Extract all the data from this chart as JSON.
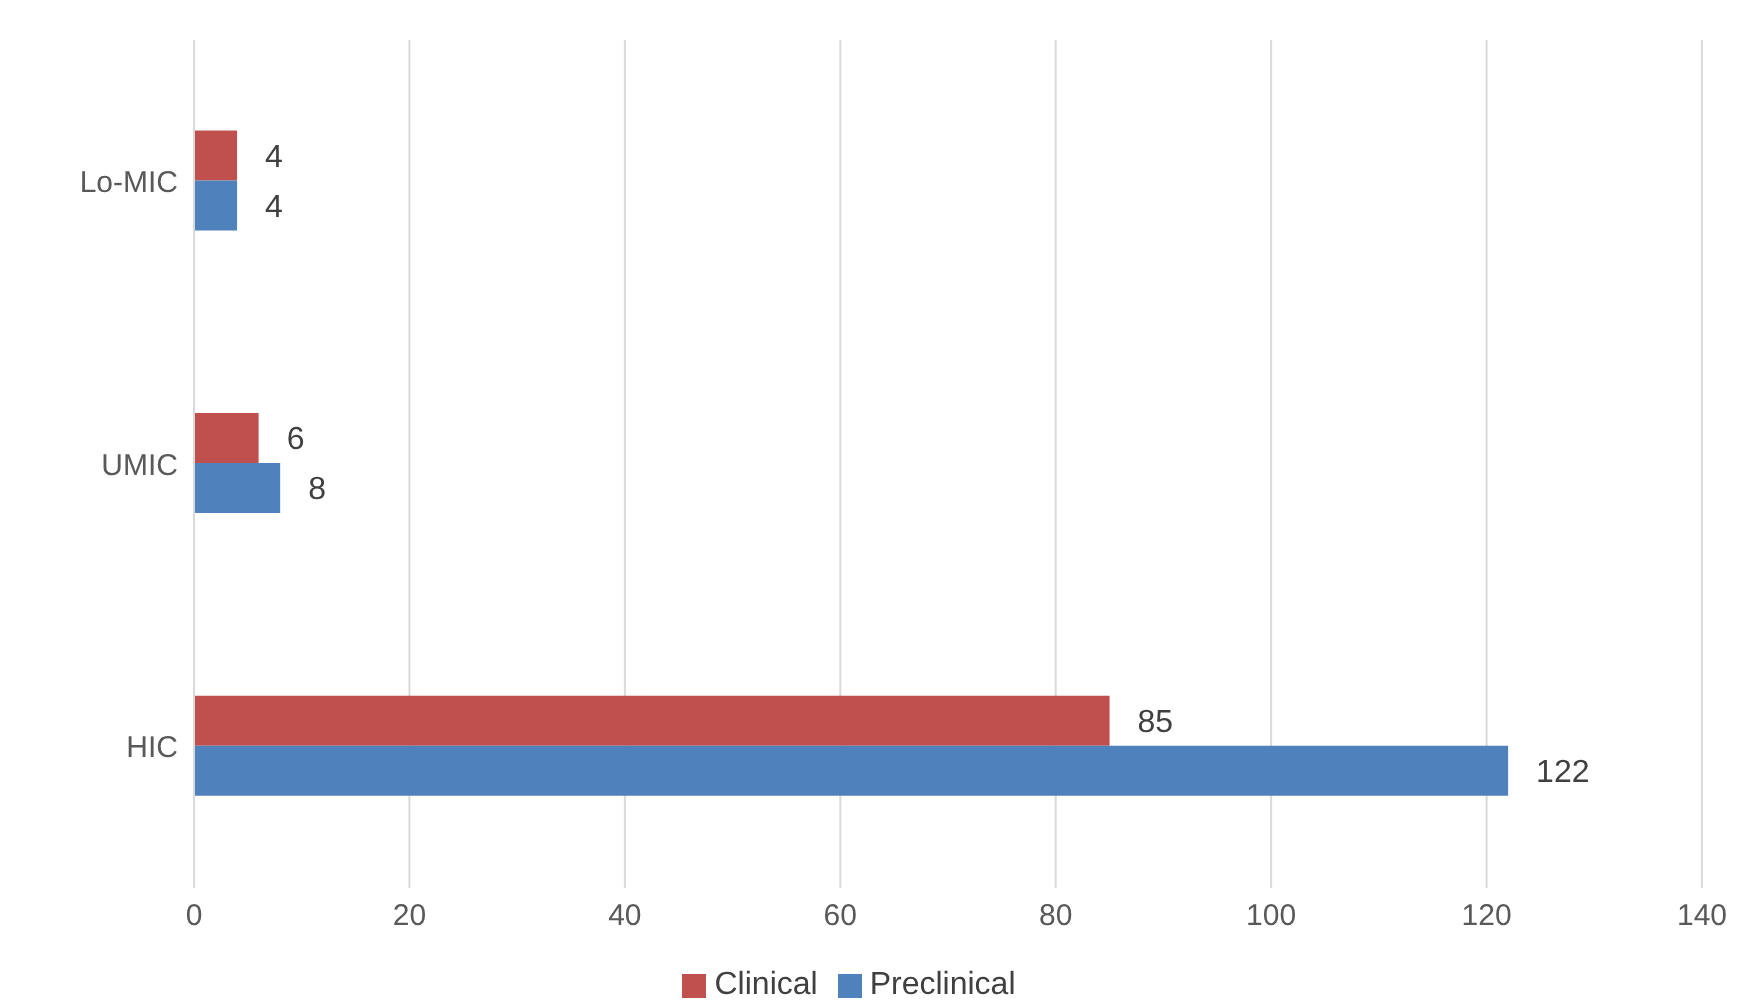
{
  "chart_data": {
    "type": "bar",
    "orientation": "horizontal",
    "categories": [
      "Lo-MIC",
      "UMIC",
      "HIC"
    ],
    "series": [
      {
        "name": "Clinical",
        "color": "#c0504d",
        "values": [
          4,
          6,
          85
        ]
      },
      {
        "name": "Preclinical",
        "color": "#4f81bd",
        "values": [
          4,
          8,
          122
        ]
      }
    ],
    "xlim": [
      0,
      140
    ],
    "xticks": [
      0,
      20,
      40,
      60,
      80,
      100,
      120,
      140
    ],
    "grid": "x",
    "legend": "bottom",
    "data_labels": true
  }
}
